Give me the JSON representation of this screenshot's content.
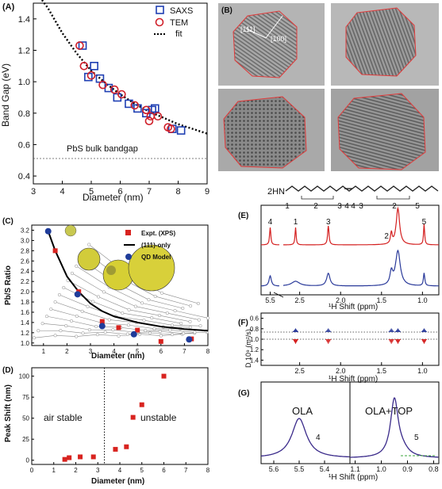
{
  "panels": {
    "A": {
      "label": "(A)",
      "ylabel": "Band Gap (eV)",
      "xlabel": "Diameter (nm)",
      "xticks": [
        "3",
        "4",
        "5",
        "6",
        "7",
        "8",
        "9"
      ],
      "yticks": [
        "0.4",
        "0.6",
        "0.8",
        "1.0",
        "1.2",
        "1.4"
      ],
      "legend": [
        "SAXS",
        "TEM",
        "fit"
      ],
      "bulk_label": "PbS bulk bandgap"
    },
    "B": {
      "label": "(B)",
      "dir1": "[111]",
      "dir2": "[100]"
    },
    "C": {
      "label": "(C)",
      "ylabel": "Pb/S Ratio",
      "xlabel": "Diameter (nm)",
      "xticks": [
        "1",
        "2",
        "3",
        "4",
        "5",
        "6",
        "7",
        "8"
      ],
      "yticks": [
        "1.0",
        "1.2",
        "1.4",
        "1.6",
        "1.8",
        "2.0",
        "2.2",
        "2.4",
        "2.6",
        "2.8",
        "3.0",
        "3.2"
      ],
      "legend": [
        "Expt. (XPS)",
        "(111)-only",
        "QD Model"
      ]
    },
    "D": {
      "label": "(D)",
      "ylabel": "Peak Shift (nm)",
      "xlabel": "Diameter (nm)",
      "xticks": [
        "0",
        "1",
        "2",
        "3",
        "4",
        "5",
        "6",
        "7",
        "8"
      ],
      "yticks": [
        "0",
        "25",
        "50",
        "75",
        "100"
      ],
      "region_left": "air stable",
      "region_right": "unstable"
    },
    "mol": {
      "prefix": "2HN",
      "numbers": [
        "1",
        "2",
        "3",
        "4",
        "4",
        "3",
        "2",
        "5"
      ]
    },
    "E": {
      "label": "(E)",
      "xlabel": "¹H Shift (ppm)",
      "xticks": [
        "5.5",
        "2.5",
        "2.0",
        "1.5",
        "1.0"
      ],
      "peaks": [
        "4",
        "1",
        "3",
        "2",
        "5"
      ]
    },
    "F": {
      "label": "(F)",
      "ylabel": "D 10⁹ (m²/s)",
      "xlabel": "¹H Shift (ppm)",
      "xticks": [
        "2.5",
        "2.0",
        "1.5",
        "1.0"
      ],
      "yticks": [
        "0.6",
        "0.8",
        "1.0",
        "1.2",
        "1.4"
      ]
    },
    "G": {
      "label": "(G)",
      "xlabel": "¹H Shift (ppm)",
      "xticks_left": [
        "5.6",
        "5.5",
        "5.4"
      ],
      "xticks_right": [
        "1.1",
        "1.0",
        "0.9",
        "0.8"
      ],
      "left_title": "OLA",
      "right_title": "OLA+TOP",
      "left_peak": "4",
      "right_peak": "5"
    }
  },
  "colors": {
    "saxs": "#1f3fb3",
    "tem": "#d0202a",
    "red": "#d8231f",
    "blue": "#1f3c9a",
    "nmr_red": "#d41f1f",
    "nmr_blue": "#2a3a9a",
    "fitline": "#1b2a6a"
  },
  "chart_data": [
    {
      "type": "scatter",
      "title": "",
      "xlabel": "Diameter (nm)",
      "ylabel": "Band Gap (eV)",
      "xlim": [
        3,
        9
      ],
      "ylim": [
        0.35,
        1.5
      ],
      "series": [
        {
          "name": "SAXS",
          "x": [
            4.7,
            4.9,
            5.1,
            5.3,
            5.6,
            5.9,
            6.3,
            6.6,
            6.9,
            7.1,
            7.2,
            7.8,
            8.1
          ],
          "y": [
            1.23,
            1.03,
            1.1,
            1.02,
            0.96,
            0.9,
            0.86,
            0.83,
            0.8,
            0.82,
            0.83,
            0.7,
            0.69
          ]
        },
        {
          "name": "TEM",
          "x": [
            4.6,
            4.75,
            5.0,
            5.4,
            5.8,
            6.05,
            6.5,
            6.9,
            7.0,
            7.05,
            7.3,
            7.65,
            7.75
          ],
          "y": [
            1.23,
            1.1,
            1.04,
            0.98,
            0.95,
            0.92,
            0.85,
            0.82,
            0.75,
            0.78,
            0.78,
            0.71,
            0.7
          ]
        },
        {
          "name": "fit",
          "x": [
            3.3,
            3.5,
            4,
            4.5,
            5,
            5.5,
            6,
            6.5,
            7,
            7.5,
            8,
            8.5,
            9
          ],
          "y": [
            1.55,
            1.47,
            1.31,
            1.18,
            1.07,
            0.99,
            0.92,
            0.86,
            0.81,
            0.77,
            0.73,
            0.7,
            0.67
          ]
        }
      ],
      "reference_line": {
        "y": 0.41
      }
    },
    {
      "type": "scatter",
      "title": "",
      "xlabel": "Diameter (nm)",
      "ylabel": "Pb/S Ratio",
      "xlim": [
        0.5,
        8
      ],
      "ylim": [
        1,
        3.3
      ],
      "series": [
        {
          "name": "Expt. (XPS)",
          "x": [
            1.5,
            2.5,
            3.5,
            4.2,
            5.0,
            6.0,
            7.3
          ],
          "y": [
            2.8,
            2.0,
            1.42,
            1.3,
            1.25,
            1.03,
            1.08
          ]
        },
        {
          "name": "(111)-only",
          "x": [
            1.2,
            1.5,
            2,
            2.5,
            3,
            3.5,
            4,
            5,
            6,
            7,
            8
          ],
          "y": [
            3.18,
            2.8,
            2.3,
            2.0,
            1.77,
            1.62,
            1.52,
            1.4,
            1.32,
            1.27,
            1.24
          ]
        },
        {
          "name": "QD Model",
          "x": [
            1.2,
            2.45,
            3.5,
            4.85,
            7.2
          ],
          "y": [
            3.18,
            1.95,
            1.33,
            1.17,
            1.07
          ]
        }
      ]
    },
    {
      "type": "scatter",
      "title": "",
      "xlabel": "Diameter (nm)",
      "ylabel": "Peak Shift (nm)",
      "xlim": [
        0,
        8
      ],
      "ylim": [
        -5,
        110
      ],
      "series": [
        {
          "name": "",
          "x": [
            1.5,
            1.7,
            2.2,
            2.8,
            3.8,
            4.3,
            4.6,
            5.0,
            6.0
          ],
          "y": [
            1,
            3,
            4,
            4,
            13,
            16,
            51,
            66,
            100
          ]
        }
      ],
      "reference_line": {
        "x": 3.3
      }
    },
    {
      "type": "line",
      "title": "",
      "xlabel": "¹H Shift (ppm)",
      "ylabel": "",
      "series": [
        {
          "name": "",
          "x": [
            5.5,
            2.55,
            2.15,
            1.38,
            1.3,
            0.98
          ],
          "y": [
            1,
            1,
            1,
            1,
            1,
            1
          ]
        }
      ]
    },
    {
      "type": "scatter",
      "title": "",
      "xlabel": "¹H Shift (ppm)",
      "ylabel": "D 10⁹ (m²/s)",
      "ylim": [
        0.6,
        1.4
      ],
      "series": [
        {
          "name": "",
          "x": [
            2.55,
            2.15,
            1.38,
            1.3,
            0.98
          ],
          "y": [
            1.1,
            1.1,
            1.1,
            1.1,
            1.1
          ]
        }
      ]
    },
    {
      "type": "line",
      "title": "",
      "xlabel": "¹H Shift (ppm)",
      "ylabel": "",
      "series": [
        {
          "name": "",
          "x": [
            5.5,
            0.95
          ],
          "y": [
            1,
            1
          ]
        }
      ]
    }
  ]
}
